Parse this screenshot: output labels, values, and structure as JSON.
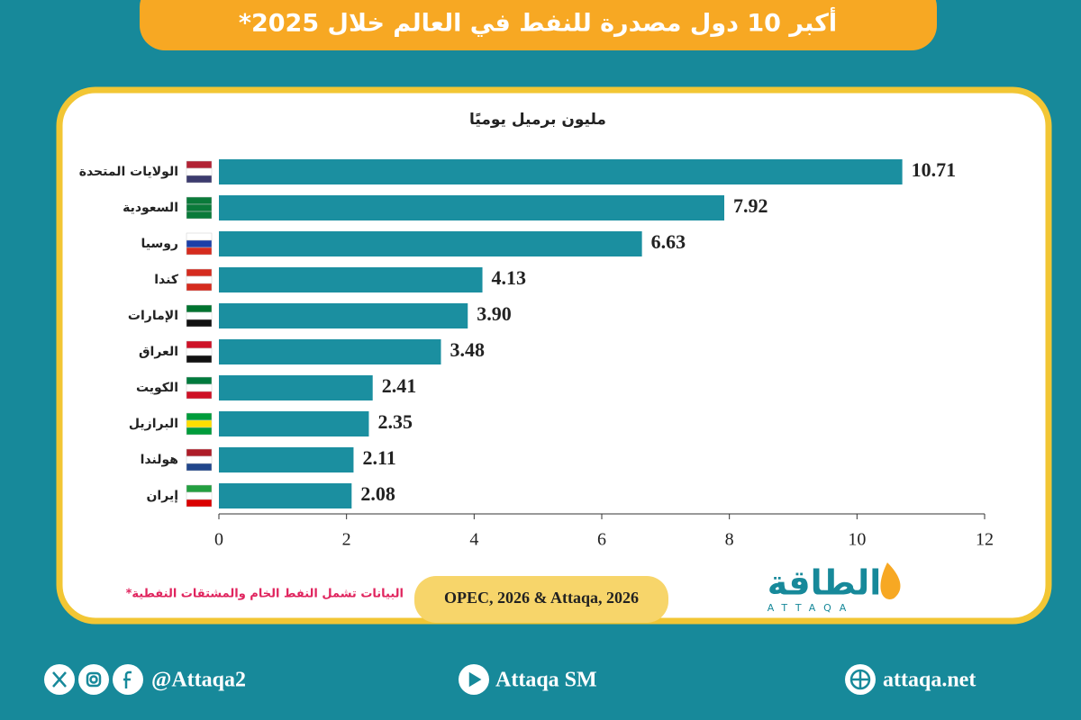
{
  "chart_data": {
    "type": "bar",
    "orientation": "horizontal",
    "title": "أكبر 10 دول مصدرة للنفط في العالم خلال 2025*",
    "subtitle": "مليون برميل يوميًا",
    "categories": [
      "الولايات المتحدة",
      "السعودية",
      "روسيا",
      "كندا",
      "الإمارات",
      "العراق",
      "الكويت",
      "البرازيل",
      "هولندا",
      "إيران"
    ],
    "values": [
      10.71,
      7.92,
      6.63,
      4.13,
      3.9,
      3.48,
      2.41,
      2.35,
      2.11,
      2.08
    ],
    "value_labels": [
      "10.71",
      "7.92",
      "6.63",
      "4.13",
      "3.90",
      "3.48",
      "2.41",
      "2.35",
      "2.11",
      "2.08"
    ],
    "color": "#1b8fa0",
    "xlim": [
      0,
      12
    ],
    "xticks": [
      0,
      2,
      4,
      6,
      8,
      10,
      12
    ],
    "footnote": "*البيانات تشمل النفط الخام والمشتقات النفطية",
    "source": "OPEC, 2026 & Attaqa, 2026"
  },
  "logo": {
    "name": "الطاقة",
    "latin": "ATTAQA"
  },
  "footer": {
    "handle": "@Attaqa2",
    "channel": "Attaqa SM",
    "website": "attaqa.net"
  }
}
